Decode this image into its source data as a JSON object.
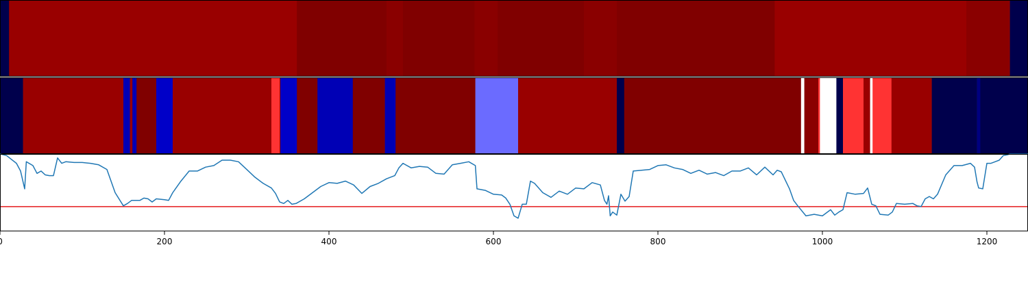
{
  "chart_data": [
    {
      "type": "heatmap",
      "segments": [
        {
          "x0": 0,
          "x1": 11,
          "color": "#00004c"
        },
        {
          "x0": 11,
          "x1": 361,
          "color": "#990000"
        },
        {
          "x0": 361,
          "x1": 470,
          "color": "#800000"
        },
        {
          "x0": 470,
          "x1": 490,
          "color": "#8a0000"
        },
        {
          "x0": 490,
          "x1": 577,
          "color": "#800000"
        },
        {
          "x0": 577,
          "x1": 605,
          "color": "#8a0000"
        },
        {
          "x0": 605,
          "x1": 710,
          "color": "#800000"
        },
        {
          "x0": 710,
          "x1": 750,
          "color": "#8a0000"
        },
        {
          "x0": 750,
          "x1": 942,
          "color": "#800000"
        },
        {
          "x0": 942,
          "x1": 1175,
          "color": "#990000"
        },
        {
          "x0": 1175,
          "x1": 1228,
          "color": "#8a0000"
        },
        {
          "x0": 1228,
          "x1": 1250,
          "color": "#00004c"
        }
      ]
    },
    {
      "type": "heatmap",
      "segments": [
        {
          "x0": 0,
          "x1": 28,
          "color": "#00004c"
        },
        {
          "x0": 28,
          "x1": 150,
          "color": "#990000"
        },
        {
          "x0": 150,
          "x1": 158,
          "color": "#0000b5"
        },
        {
          "x0": 158,
          "x1": 161,
          "color": "#990000"
        },
        {
          "x0": 161,
          "x1": 166,
          "color": "#0000b5"
        },
        {
          "x0": 166,
          "x1": 190,
          "color": "#800000"
        },
        {
          "x0": 190,
          "x1": 210,
          "color": "#0000c8"
        },
        {
          "x0": 210,
          "x1": 330,
          "color": "#990000"
        },
        {
          "x0": 330,
          "x1": 340,
          "color": "#ff3333"
        },
        {
          "x0": 340,
          "x1": 341,
          "color": "#990000"
        },
        {
          "x0": 341,
          "x1": 361,
          "color": "#0000c8"
        },
        {
          "x0": 361,
          "x1": 386,
          "color": "#800000"
        },
        {
          "x0": 386,
          "x1": 429,
          "color": "#0000b5"
        },
        {
          "x0": 429,
          "x1": 468,
          "color": "#800000"
        },
        {
          "x0": 468,
          "x1": 481,
          "color": "#0000b5"
        },
        {
          "x0": 481,
          "x1": 578,
          "color": "#800000"
        },
        {
          "x0": 578,
          "x1": 630,
          "color": "#6b6bff"
        },
        {
          "x0": 630,
          "x1": 750,
          "color": "#990000"
        },
        {
          "x0": 750,
          "x1": 759,
          "color": "#00004c"
        },
        {
          "x0": 759,
          "x1": 974,
          "color": "#800000"
        },
        {
          "x0": 974,
          "x1": 978,
          "color": "#ffffff"
        },
        {
          "x0": 978,
          "x1": 995,
          "color": "#8a0000"
        },
        {
          "x0": 995,
          "x1": 997,
          "color": "#ff3333"
        },
        {
          "x0": 997,
          "x1": 1017,
          "color": "#ffffff"
        },
        {
          "x0": 1017,
          "x1": 1025,
          "color": "#00004c"
        },
        {
          "x0": 1025,
          "x1": 1050,
          "color": "#ff3333"
        },
        {
          "x0": 1050,
          "x1": 1058,
          "color": "#990000"
        },
        {
          "x0": 1058,
          "x1": 1061,
          "color": "#ffffff"
        },
        {
          "x0": 1061,
          "x1": 1084,
          "color": "#ff3333"
        },
        {
          "x0": 1084,
          "x1": 1133,
          "color": "#990000"
        },
        {
          "x0": 1133,
          "x1": 1188,
          "color": "#00004c"
        },
        {
          "x0": 1188,
          "x1": 1192,
          "color": "#000080"
        },
        {
          "x0": 1192,
          "x1": 1250,
          "color": "#00004c"
        }
      ]
    },
    {
      "type": "line",
      "xlim": [
        0,
        1250
      ],
      "ylim": [
        0,
        1
      ],
      "ticks": [
        0,
        200,
        400,
        600,
        800,
        1000,
        1200
      ],
      "tick_labels": [
        "0",
        "200",
        "400",
        "600",
        "800",
        "1000",
        "1200"
      ],
      "grid": false,
      "threshold": {
        "y": 0.32,
        "color": "#e41a1c"
      },
      "series": [
        {
          "color": "#1f77b4",
          "x": [
            0,
            8,
            20,
            25,
            30,
            32,
            40,
            45,
            50,
            55,
            60,
            65,
            70,
            75,
            80,
            90,
            100,
            110,
            120,
            130,
            140,
            150,
            155,
            160,
            170,
            175,
            180,
            185,
            190,
            200,
            205,
            210,
            220,
            230,
            240,
            250,
            260,
            270,
            280,
            290,
            300,
            310,
            320,
            330,
            335,
            340,
            345,
            350,
            355,
            360,
            370,
            380,
            390,
            400,
            410,
            420,
            430,
            440,
            450,
            460,
            470,
            480,
            485,
            490,
            500,
            510,
            520,
            530,
            540,
            550,
            560,
            570,
            578,
            580,
            590,
            600,
            610,
            615,
            620,
            625,
            630,
            635,
            640,
            645,
            650,
            660,
            670,
            680,
            690,
            700,
            710,
            720,
            730,
            735,
            738,
            740,
            742,
            745,
            750,
            755,
            760,
            765,
            770,
            780,
            790,
            800,
            810,
            820,
            830,
            840,
            850,
            860,
            870,
            880,
            890,
            900,
            910,
            920,
            930,
            940,
            945,
            950,
            960,
            965,
            970,
            980,
            990,
            1000,
            1010,
            1015,
            1020,
            1025,
            1030,
            1040,
            1050,
            1055,
            1060,
            1065,
            1070,
            1080,
            1085,
            1090,
            1100,
            1110,
            1115,
            1120,
            1125,
            1130,
            1135,
            1140,
            1150,
            1160,
            1170,
            1180,
            1185,
            1188,
            1190,
            1195,
            1200,
            1205,
            1210,
            1215,
            1220,
            1225,
            1228,
            1250
          ],
          "y": [
            1.0,
            0.98,
            0.88,
            0.78,
            0.55,
            0.9,
            0.85,
            0.75,
            0.78,
            0.73,
            0.72,
            0.72,
            0.95,
            0.88,
            0.9,
            0.89,
            0.89,
            0.88,
            0.86,
            0.8,
            0.5,
            0.33,
            0.36,
            0.4,
            0.4,
            0.43,
            0.42,
            0.38,
            0.42,
            0.41,
            0.4,
            0.5,
            0.65,
            0.78,
            0.78,
            0.83,
            0.85,
            0.92,
            0.92,
            0.9,
            0.8,
            0.7,
            0.62,
            0.56,
            0.49,
            0.38,
            0.36,
            0.4,
            0.35,
            0.36,
            0.42,
            0.5,
            0.58,
            0.63,
            0.62,
            0.65,
            0.6,
            0.49,
            0.58,
            0.62,
            0.68,
            0.72,
            0.82,
            0.88,
            0.82,
            0.84,
            0.83,
            0.75,
            0.74,
            0.86,
            0.88,
            0.9,
            0.85,
            0.55,
            0.53,
            0.48,
            0.47,
            0.43,
            0.35,
            0.2,
            0.17,
            0.35,
            0.35,
            0.65,
            0.62,
            0.5,
            0.44,
            0.52,
            0.48,
            0.56,
            0.55,
            0.63,
            0.6,
            0.4,
            0.35,
            0.46,
            0.2,
            0.25,
            0.21,
            0.48,
            0.39,
            0.45,
            0.78,
            0.79,
            0.8,
            0.85,
            0.86,
            0.82,
            0.8,
            0.75,
            0.79,
            0.74,
            0.76,
            0.72,
            0.78,
            0.78,
            0.82,
            0.73,
            0.83,
            0.73,
            0.79,
            0.77,
            0.55,
            0.4,
            0.33,
            0.2,
            0.22,
            0.2,
            0.28,
            0.21,
            0.25,
            0.28,
            0.5,
            0.48,
            0.49,
            0.56,
            0.35,
            0.33,
            0.22,
            0.21,
            0.25,
            0.36,
            0.35,
            0.36,
            0.33,
            0.32,
            0.42,
            0.45,
            0.42,
            0.48,
            0.73,
            0.85,
            0.85,
            0.88,
            0.83,
            0.64,
            0.56,
            0.55,
            0.88,
            0.88,
            0.9,
            0.92,
            0.98,
            0.99,
            1.0,
            1.0
          ]
        }
      ]
    }
  ]
}
